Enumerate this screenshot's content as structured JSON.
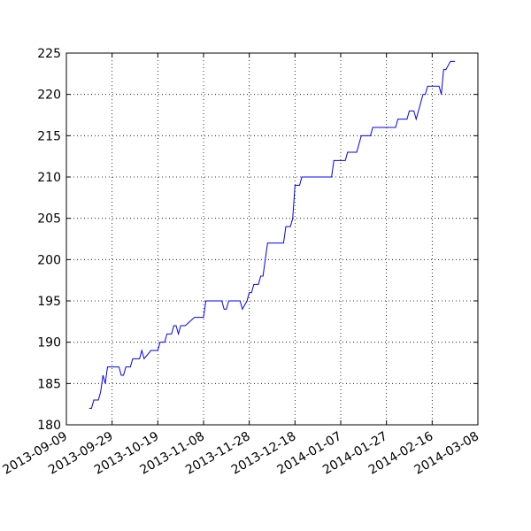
{
  "chart_data": {
    "type": "line",
    "x": [
      "2013-09-19",
      "2013-09-20",
      "2013-09-21",
      "2013-09-23",
      "2013-09-24",
      "2013-09-25",
      "2013-09-26",
      "2013-09-27",
      "2013-10-02",
      "2013-10-03",
      "2013-10-04",
      "2013-10-05",
      "2013-10-07",
      "2013-10-08",
      "2013-10-11",
      "2013-10-12",
      "2013-10-13",
      "2013-10-16",
      "2013-10-19",
      "2013-10-20",
      "2013-10-22",
      "2013-10-23",
      "2013-10-25",
      "2013-10-26",
      "2013-10-27",
      "2013-10-28",
      "2013-10-29",
      "2013-10-31",
      "2013-11-04",
      "2013-11-08",
      "2013-11-09",
      "2013-11-16",
      "2013-11-17",
      "2013-11-18",
      "2013-11-19",
      "2013-11-24",
      "2013-11-25",
      "2013-11-27",
      "2013-11-28",
      "2013-11-29",
      "2013-11-30",
      "2013-12-02",
      "2013-12-03",
      "2013-12-04",
      "2013-12-06",
      "2013-12-13",
      "2013-12-14",
      "2013-12-16",
      "2013-12-17",
      "2013-12-18",
      "2013-12-20",
      "2013-12-21",
      "2014-01-03",
      "2014-01-04",
      "2014-01-09",
      "2014-01-10",
      "2014-01-14",
      "2014-01-16",
      "2014-01-20",
      "2014-01-21",
      "2014-01-31",
      "2014-02-01",
      "2014-02-05",
      "2014-02-06",
      "2014-02-08",
      "2014-02-09",
      "2014-02-10",
      "2014-02-12",
      "2014-02-13",
      "2014-02-14",
      "2014-02-19",
      "2014-02-20",
      "2014-02-21",
      "2014-02-22",
      "2014-02-24",
      "2014-02-26"
    ],
    "series": [
      {
        "color": "#0000ff",
        "values": [
          182,
          182,
          183,
          183,
          184,
          186,
          185,
          187,
          187,
          186,
          186,
          187,
          187,
          188,
          188,
          189,
          188,
          189,
          189,
          190,
          190,
          191,
          191,
          192,
          192,
          191,
          192,
          192,
          193,
          193,
          195,
          195,
          194,
          194,
          195,
          195,
          194,
          195,
          196,
          196,
          197,
          197,
          198,
          198,
          202,
          202,
          204,
          204,
          205,
          209,
          209,
          210,
          210,
          212,
          212,
          213,
          213,
          215,
          215,
          216,
          216,
          217,
          217,
          218,
          218,
          217,
          218,
          220,
          220,
          221,
          221,
          220,
          223,
          223,
          224,
          224
        ]
      }
    ],
    "xlim": [
      "2013-09-09",
      "2014-03-08"
    ],
    "xticks": [
      "2013-09-09",
      "2013-09-29",
      "2013-10-19",
      "2013-11-08",
      "2013-11-28",
      "2013-12-18",
      "2014-01-07",
      "2014-01-27",
      "2014-02-16",
      "2014-03-08"
    ],
    "ylim": [
      180,
      225
    ],
    "yticks": [
      180,
      185,
      190,
      195,
      200,
      205,
      210,
      215,
      220,
      225
    ],
    "grid": true
  }
}
